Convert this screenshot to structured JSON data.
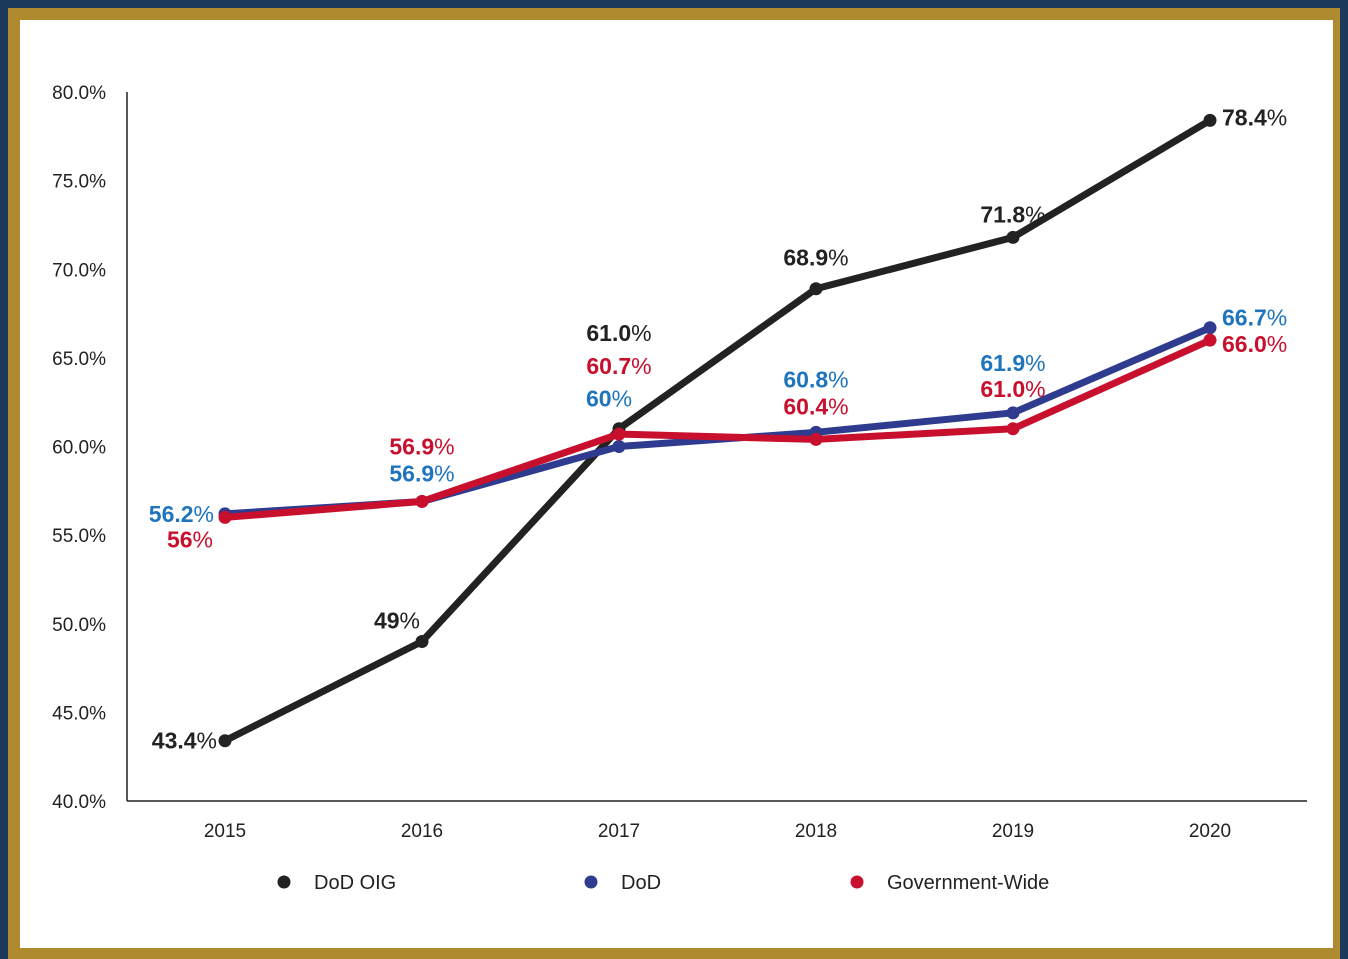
{
  "chart_data": {
    "type": "line",
    "title": "",
    "xlabel": "",
    "ylabel": "",
    "categories": [
      "2015",
      "2016",
      "2017",
      "2018",
      "2019",
      "2020"
    ],
    "ylim": [
      40,
      80
    ],
    "yticks": [
      40,
      45,
      50,
      55,
      60,
      65,
      70,
      75,
      80
    ],
    "ytick_labels": [
      "40.0%",
      "45.0%",
      "50.0%",
      "55.0%",
      "60.0%",
      "65.0%",
      "70.0%",
      "75.0%",
      "80.0%"
    ],
    "grid": false,
    "legend_position": "bottom",
    "series": [
      {
        "name": "DoD OIG",
        "color": "#222222",
        "values": [
          43.4,
          49,
          61.0,
          68.9,
          71.8,
          78.4
        ],
        "labels": [
          "43.4",
          "49",
          "61.0",
          "68.9",
          "71.8",
          "78.4"
        ]
      },
      {
        "name": "DoD",
        "color": "#2e3b8f",
        "label_color": "#1f75bd",
        "values": [
          56.2,
          56.9,
          60,
          60.8,
          61.9,
          66.7
        ],
        "labels": [
          "56.2",
          "56.9",
          "60",
          "60.8",
          "61.9",
          "66.7"
        ]
      },
      {
        "name": "Government-Wide",
        "color": "#c8102e",
        "values": [
          56,
          56.9,
          60.7,
          60.4,
          61.0,
          66.0
        ],
        "labels": [
          "56",
          "56.9",
          "60.7",
          "60.4",
          "61.0",
          "66.0"
        ]
      }
    ],
    "percent_sign": "%"
  },
  "colors": {
    "frame": "#b08a2e",
    "outer": "#1b3a5c",
    "background": "#ffffff"
  }
}
